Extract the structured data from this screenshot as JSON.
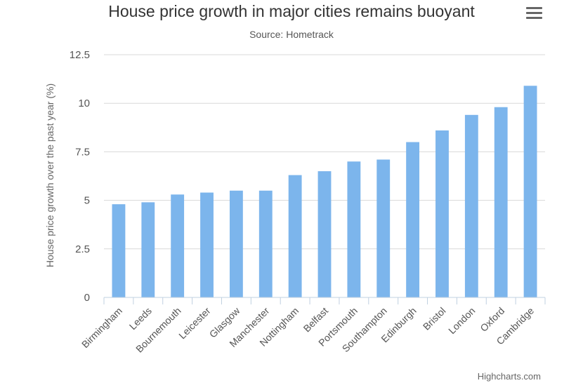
{
  "chart_data": {
    "type": "bar",
    "title": "House price growth in major cities remains buoyant",
    "subtitle": "Source: Hometrack",
    "xlabel": "",
    "ylabel": "House price growth over the past year (%)",
    "ylim": [
      0,
      12.5
    ],
    "yticks": [
      "0",
      "2.5",
      "5",
      "7.5",
      "10",
      "12.5"
    ],
    "ytick_values": [
      0,
      2.5,
      5,
      7.5,
      10,
      12.5
    ],
    "grid": true,
    "legend": "none",
    "categories": [
      "Birmingham",
      "Leeds",
      "Bournemouth",
      "Leicester",
      "Glasgow",
      "Manchester",
      "Nottingham",
      "Belfast",
      "Portsmouth",
      "Southampton",
      "Edinburgh",
      "Bristol",
      "London",
      "Oxford",
      "Cambridge"
    ],
    "values": [
      4.8,
      4.9,
      5.3,
      5.4,
      5.5,
      5.5,
      6.3,
      6.5,
      7.0,
      7.1,
      8.0,
      8.6,
      9.4,
      9.8,
      10.9
    ],
    "bar_color": "#7cb5ec"
  },
  "credits": "Highcharts.com",
  "menu": {
    "icon": "hamburger-menu-icon"
  }
}
